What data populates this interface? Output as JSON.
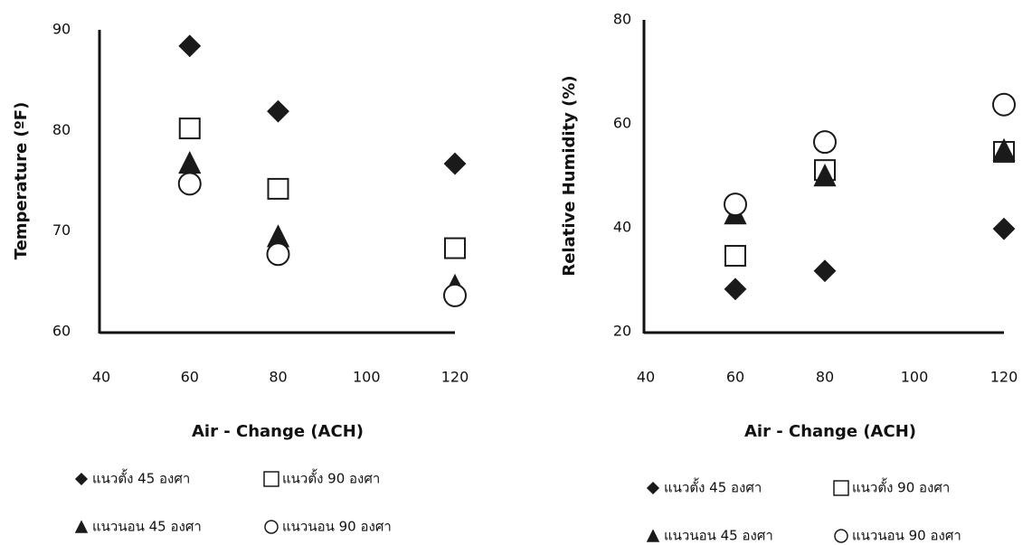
{
  "chart_data": [
    {
      "type": "scatter",
      "ylabel": "Temperature (ºF)",
      "xlabel": "Air - Change (ACH)",
      "xlim": [
        40,
        120
      ],
      "xticks": [
        40,
        60,
        80,
        100,
        120
      ],
      "ylim": [
        60,
        90
      ],
      "yticks": [
        60,
        70,
        80,
        90
      ],
      "series": [
        {
          "name": "แนวตั้ง 45 องศา",
          "marker": "diamond",
          "filled": true,
          "color": "#1a1a1a",
          "x": [
            60,
            80,
            120
          ],
          "values": [
            88.4,
            81.9,
            76.7
          ]
        },
        {
          "name": "แนวตั้ง 90 องศา",
          "marker": "square",
          "filled": false,
          "color": "#1a1a1a",
          "x": [
            60,
            80,
            120
          ],
          "values": [
            80.2,
            74.2,
            68.3
          ]
        },
        {
          "name": "แนวนอน 45 องศา",
          "marker": "triangle",
          "filled": true,
          "color": "#1a1a1a",
          "x": [
            60,
            80,
            120
          ],
          "values": [
            76.6,
            69.3,
            64.4
          ]
        },
        {
          "name": "แนวนอน 90 องศา",
          "marker": "circle",
          "filled": false,
          "color": "#1a1a1a",
          "x": [
            60,
            80,
            120
          ],
          "values": [
            74.7,
            67.7,
            63.6
          ]
        }
      ]
    },
    {
      "type": "scatter",
      "ylabel": "Relative Humidity (%)",
      "xlabel": "Air - Change (ACH)",
      "xlim": [
        40,
        120
      ],
      "xticks": [
        40,
        60,
        80,
        100,
        120
      ],
      "ylim": [
        20,
        80
      ],
      "yticks": [
        20,
        40,
        60,
        80
      ],
      "series": [
        {
          "name": "แนวตั้ง 45 องศา",
          "marker": "diamond",
          "filled": true,
          "color": "#1a1a1a",
          "x": [
            60,
            80,
            120
          ],
          "values": [
            28.2,
            31.7,
            39.8
          ]
        },
        {
          "name": "แนวตั้ง 90 องศา",
          "marker": "square",
          "filled": false,
          "color": "#1a1a1a",
          "x": [
            60,
            80,
            120
          ],
          "values": [
            34.6,
            51.1,
            54.6
          ]
        },
        {
          "name": "แนวนอน 45 องศา",
          "marker": "triangle",
          "filled": true,
          "color": "#1a1a1a",
          "x": [
            60,
            80,
            120
          ],
          "values": [
            42.4,
            49.7,
            54.6
          ]
        },
        {
          "name": "แนวนอน 90 องศา",
          "marker": "circle",
          "filled": false,
          "color": "#1a1a1a",
          "x": [
            60,
            80,
            120
          ],
          "values": [
            44.5,
            56.5,
            63.7
          ]
        }
      ]
    }
  ]
}
